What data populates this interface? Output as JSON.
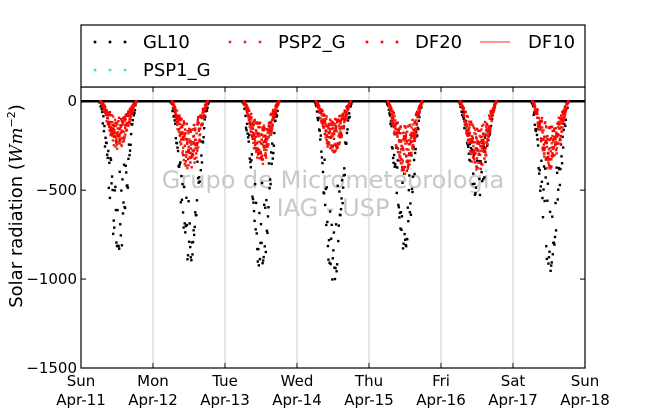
{
  "chart_data": {
    "type": "scatter",
    "title": "",
    "ylabel_prefix": "Solar radiation (",
    "ylabel_math": "Wm",
    "ylabel_exp": "−2",
    "ylabel_suffix": ")",
    "ylim": [
      -1500,
      80
    ],
    "yticks": [
      0,
      -500,
      -1000,
      -1500
    ],
    "ytick_labels": [
      "0",
      "−500",
      "−1000",
      "−1500"
    ],
    "xlim": [
      0,
      7
    ],
    "xticks": [
      0,
      1,
      2,
      3,
      4,
      5,
      6,
      7
    ],
    "xtick_labels_day": [
      "Sun",
      "Mon",
      "Tue",
      "Wed",
      "Thu",
      "Fri",
      "Sat",
      "Sun"
    ],
    "xtick_labels_date": [
      "Apr-11",
      "Apr-12",
      "Apr-13",
      "Apr-14",
      "Apr-15",
      "Apr-16",
      "Apr-17",
      "Apr-18"
    ],
    "grid": "vertical",
    "legend_position": "top",
    "watermark_line1": "Grupo de Micrometeorologia",
    "watermark_line2": "IAG - USP",
    "series": [
      {
        "name": "GL10",
        "color": "#000000",
        "style": "dotted",
        "days": [
          {
            "start": 0.25,
            "end": 0.78,
            "min": -880
          },
          {
            "start": 1.24,
            "end": 1.78,
            "min": -930
          },
          {
            "start": 2.24,
            "end": 2.76,
            "min": -990
          },
          {
            "start": 3.24,
            "end": 3.77,
            "min": -1020
          },
          {
            "start": 4.24,
            "end": 4.75,
            "min": -870
          },
          {
            "start": 5.24,
            "end": 5.78,
            "min": -560
          },
          {
            "start": 6.25,
            "end": 6.78,
            "min": -960
          }
        ]
      },
      {
        "name": "PSP2_G",
        "color": "#e03020",
        "style": "dotted",
        "days": [
          {
            "start": 0.27,
            "end": 0.77,
            "min": -280
          },
          {
            "start": 1.26,
            "end": 1.76,
            "min": -400
          },
          {
            "start": 2.26,
            "end": 2.75,
            "min": -360
          },
          {
            "start": 3.26,
            "end": 3.75,
            "min": -310
          },
          {
            "start": 4.26,
            "end": 4.74,
            "min": -420
          },
          {
            "start": 5.26,
            "end": 5.77,
            "min": -420
          },
          {
            "start": 6.27,
            "end": 6.77,
            "min": -400
          }
        ]
      },
      {
        "name": "DF20",
        "color": "#ff0000",
        "style": "dotted",
        "days": [
          {
            "start": 0.27,
            "end": 0.77,
            "min": -260
          },
          {
            "start": 1.26,
            "end": 1.76,
            "min": -380
          },
          {
            "start": 2.26,
            "end": 2.75,
            "min": -340
          },
          {
            "start": 3.26,
            "end": 3.75,
            "min": -290
          },
          {
            "start": 4.26,
            "end": 4.74,
            "min": -400
          },
          {
            "start": 5.26,
            "end": 5.77,
            "min": -400
          },
          {
            "start": 6.27,
            "end": 6.77,
            "min": -380
          }
        ]
      },
      {
        "name": "DF10",
        "color": "#ff5050",
        "style": "line",
        "days": []
      },
      {
        "name": "PSP1_G",
        "color": "#40e0d0",
        "style": "dotted",
        "days": []
      }
    ]
  }
}
